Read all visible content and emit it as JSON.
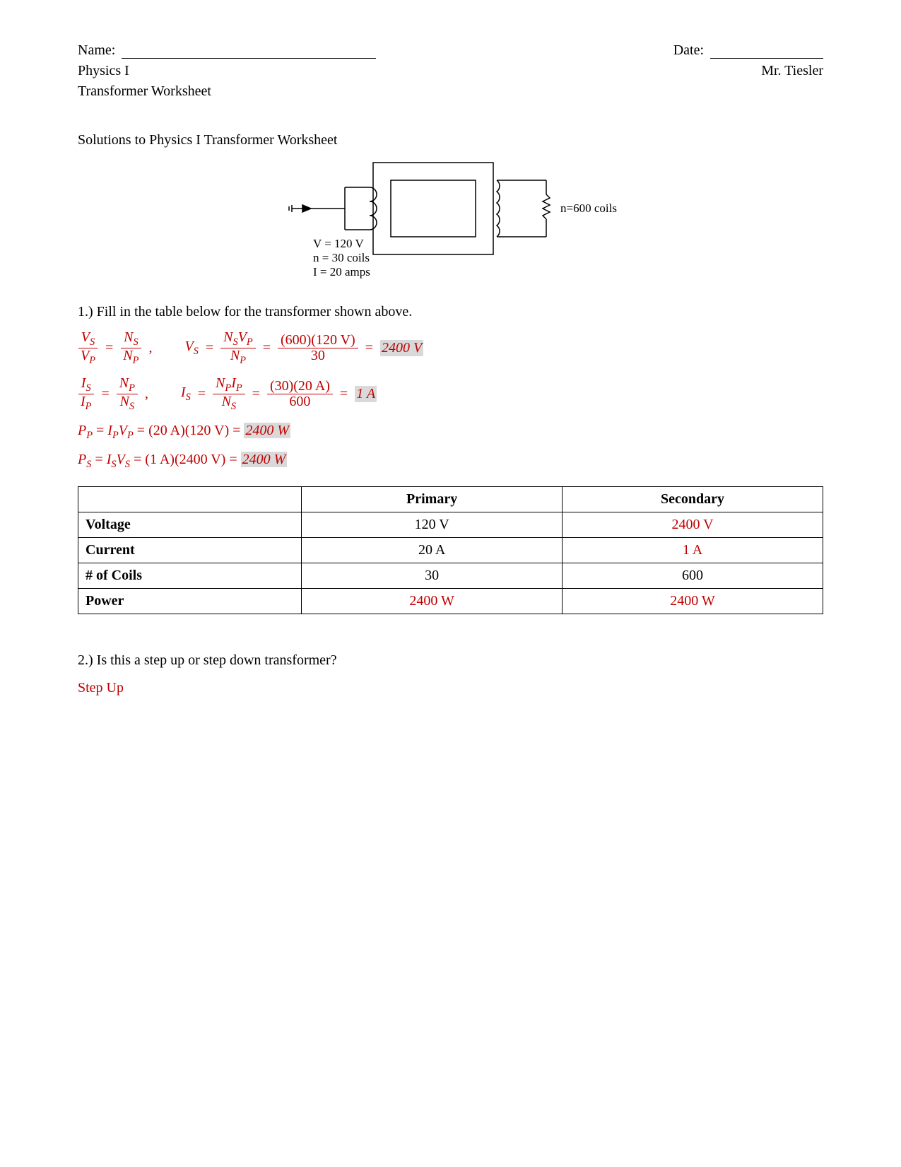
{
  "header": {
    "name_label": "Name:",
    "date_label": "Date:",
    "course": "Physics I",
    "teacher": "Mr. Tiesler",
    "assignment": "Transformer Worksheet"
  },
  "section_title": "Solutions to Physics I Transformer Worksheet",
  "diagram": {
    "left_v": "V = 120 V",
    "left_n": "n = 30 coils",
    "left_i": "I = 20 amps",
    "right_n": "n=600 coils"
  },
  "q1_text": "1.) Fill in the table below for the transformer shown above.",
  "equations": {
    "vs": {
      "lhs_num": "V",
      "lhs_num_sub": "S",
      "lhs_den": "V",
      "lhs_den_sub": "P",
      "rhs1_num": "N",
      "rhs1_num_sub": "S",
      "rhs1_den": "N",
      "rhs1_den_sub": "P",
      "mid_lhs": "V",
      "mid_lhs_sub": "S",
      "mid_num_a": "N",
      "mid_num_a_sub": "S",
      "mid_num_b": "V",
      "mid_num_b_sub": "P",
      "mid_den": "N",
      "mid_den_sub": "P",
      "calc_num": "(600)(120 V)",
      "calc_den": "30",
      "answer": "2400 V"
    },
    "is": {
      "lhs_num": "I",
      "lhs_num_sub": "S",
      "lhs_den": "I",
      "lhs_den_sub": "P",
      "rhs1_num": "N",
      "rhs1_num_sub": "P",
      "rhs1_den": "N",
      "rhs1_den_sub": "S",
      "mid_lhs": "I",
      "mid_lhs_sub": "S",
      "mid_num_a": "N",
      "mid_num_a_sub": "P",
      "mid_num_b": "I",
      "mid_num_b_sub": "P",
      "mid_den": "N",
      "mid_den_sub": "S",
      "calc_num": "(30)(20 A)",
      "calc_den": "600",
      "answer": "1 A"
    },
    "pp": {
      "lhs": "P",
      "lhs_sub": "P",
      "a": "I",
      "a_sub": "P",
      "b": "V",
      "b_sub": "P",
      "calc": "(20 A)(120 V)",
      "answer": "2400 W"
    },
    "ps": {
      "lhs": "P",
      "lhs_sub": "S",
      "a": "I",
      "a_sub": "S",
      "b": "V",
      "b_sub": "S",
      "calc": "(1 A)(2400 V)",
      "answer": "2400 W"
    }
  },
  "table": {
    "col_primary": "Primary",
    "col_secondary": "Secondary",
    "rows": [
      {
        "label": "Voltage",
        "primary": "120 V",
        "secondary": "2400 V",
        "primary_red": false,
        "secondary_red": true
      },
      {
        "label": "Current",
        "primary": "20 A",
        "secondary": "1 A",
        "primary_red": false,
        "secondary_red": true
      },
      {
        "label": "# of Coils",
        "primary": "30",
        "secondary": "600",
        "primary_red": false,
        "secondary_red": false
      },
      {
        "label": "Power",
        "primary": "2400 W",
        "secondary": "2400 W",
        "primary_red": true,
        "secondary_red": true
      }
    ]
  },
  "q2_text": "2.) Is this a step up or step down transformer?",
  "q2_answer": "Step Up",
  "colors": {
    "answer_red": "#c00000",
    "highlight_bg": "#d9d9d9",
    "text": "#000000"
  }
}
